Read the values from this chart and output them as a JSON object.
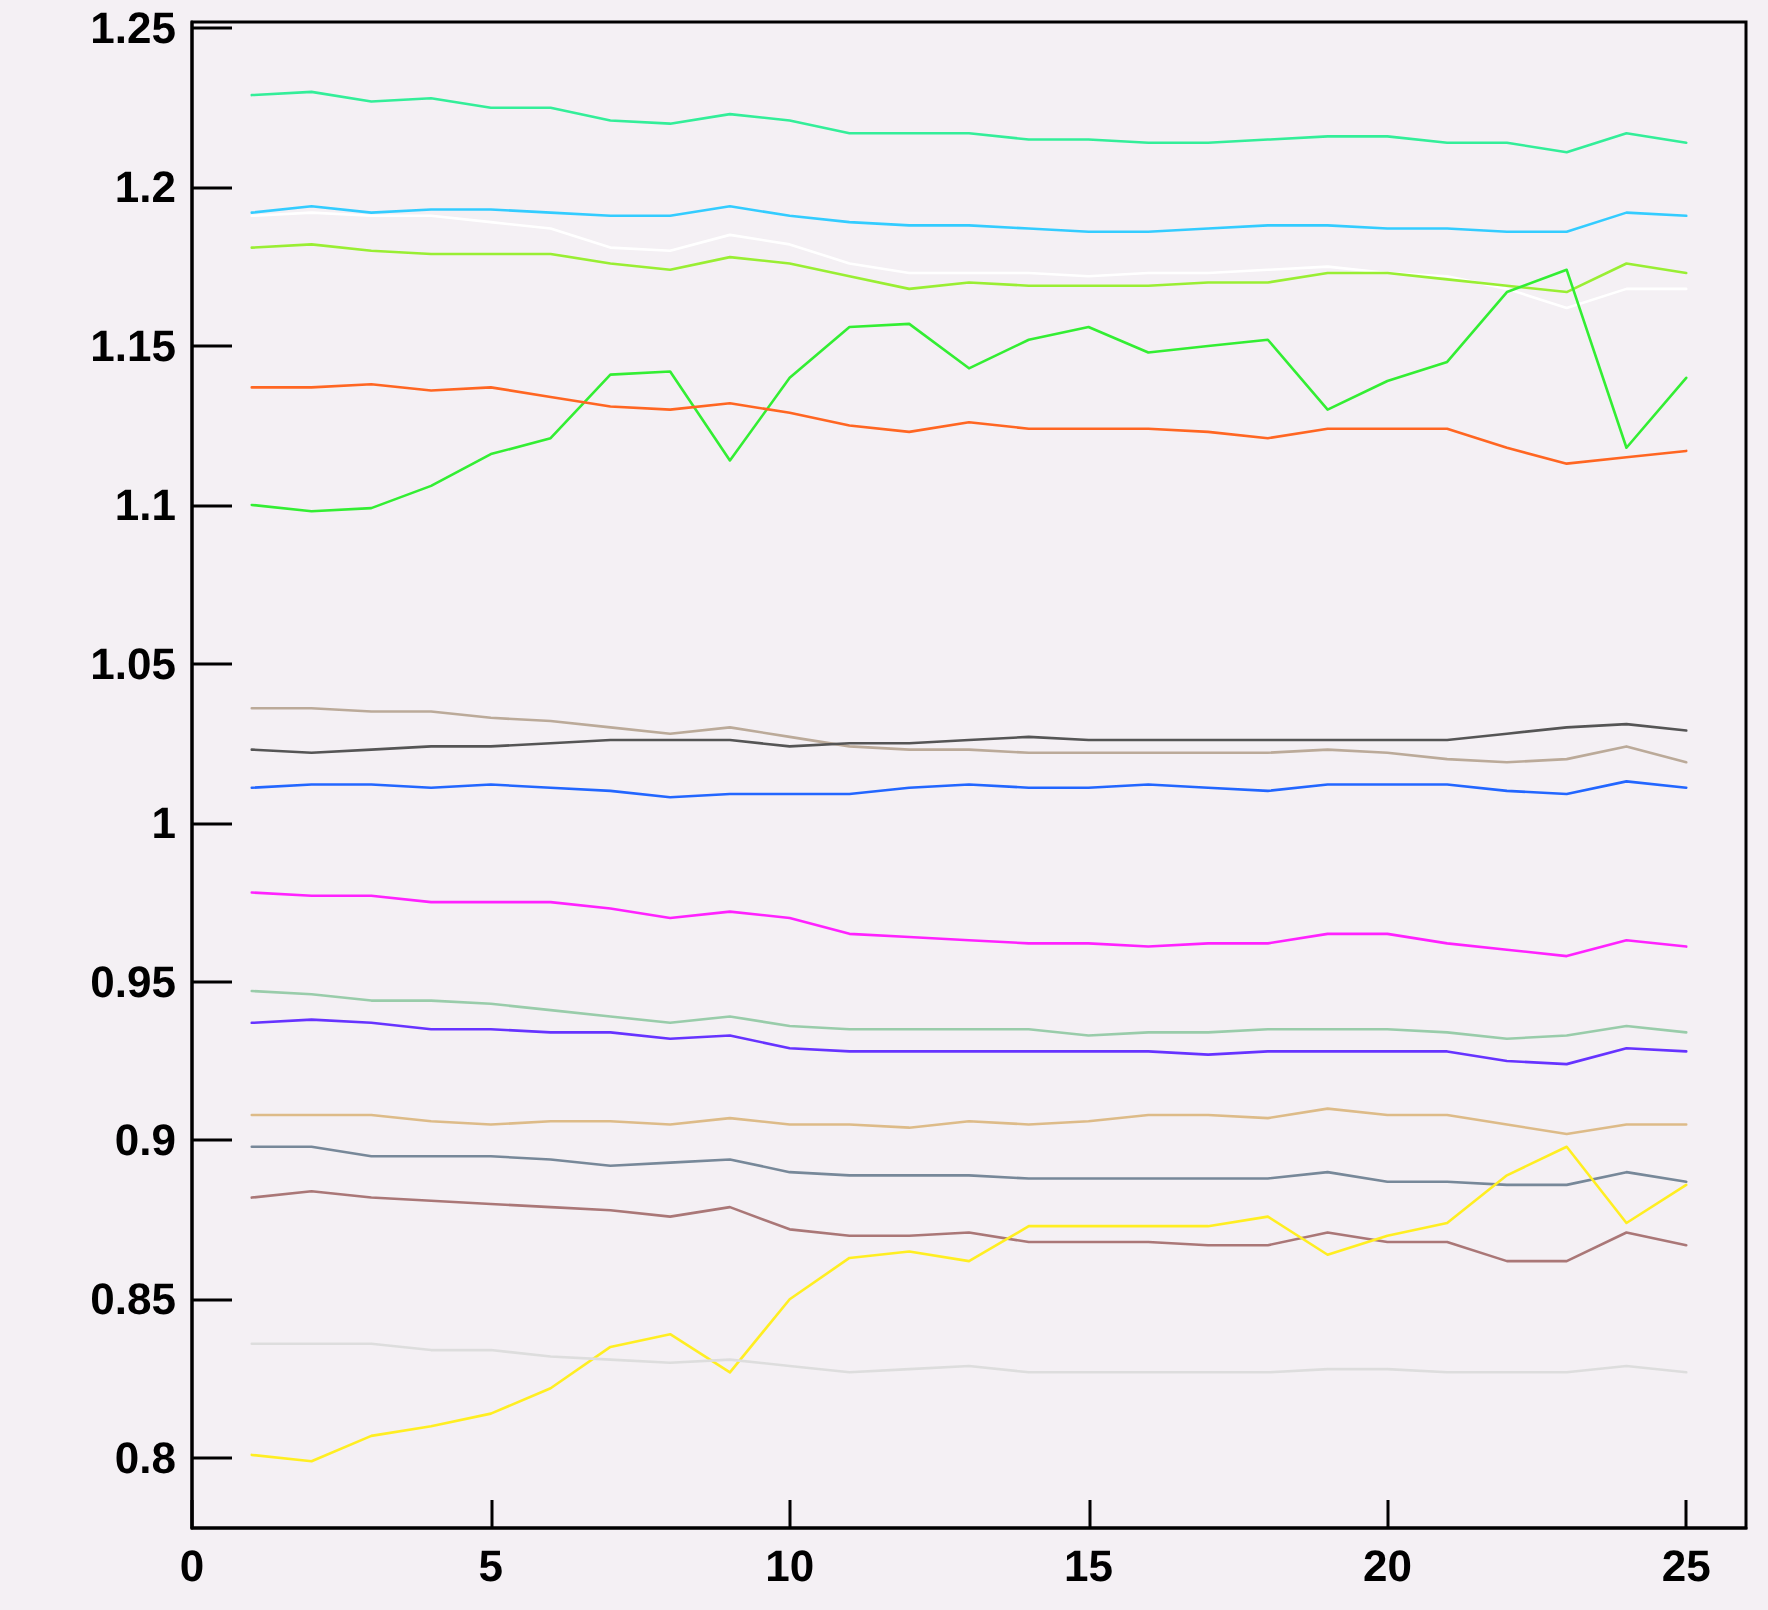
{
  "chart_data": {
    "type": "line",
    "x": [
      1,
      2,
      3,
      4,
      5,
      6,
      7,
      8,
      9,
      10,
      11,
      12,
      13,
      14,
      15,
      16,
      17,
      18,
      19,
      20,
      21,
      22,
      23,
      24,
      25
    ],
    "xlim": [
      0,
      26
    ],
    "xticks": [
      0,
      5,
      10,
      15,
      20,
      25
    ],
    "ylim": [
      0.778,
      1.252
    ],
    "yticks": [
      0.8,
      0.85,
      0.9,
      0.95,
      1,
      1.05,
      1.1,
      1.15,
      1.2,
      1.25
    ],
    "marker": "none",
    "line_style": "solid",
    "series": [
      {
        "color": "#33ee99",
        "values": [
          1.229,
          1.23,
          1.227,
          1.228,
          1.225,
          1.225,
          1.221,
          1.22,
          1.223,
          1.221,
          1.217,
          1.217,
          1.217,
          1.215,
          1.215,
          1.214,
          1.214,
          1.215,
          1.216,
          1.216,
          1.214,
          1.214,
          1.211,
          1.217,
          1.214
        ]
      },
      {
        "color": "#33ccff",
        "values": [
          1.192,
          1.194,
          1.192,
          1.193,
          1.193,
          1.192,
          1.191,
          1.191,
          1.194,
          1.191,
          1.189,
          1.188,
          1.188,
          1.187,
          1.186,
          1.186,
          1.187,
          1.188,
          1.188,
          1.187,
          1.187,
          1.186,
          1.186,
          1.192,
          1.191
        ]
      },
      {
        "color": "#ffffff",
        "values": [
          1.191,
          1.192,
          1.191,
          1.191,
          1.189,
          1.187,
          1.181,
          1.18,
          1.185,
          1.182,
          1.176,
          1.173,
          1.173,
          1.173,
          1.172,
          1.173,
          1.173,
          1.174,
          1.175,
          1.173,
          1.172,
          1.168,
          1.162,
          1.168,
          1.168
        ]
      },
      {
        "color": "#99ee33",
        "values": [
          1.181,
          1.182,
          1.18,
          1.179,
          1.179,
          1.179,
          1.176,
          1.174,
          1.178,
          1.176,
          1.172,
          1.168,
          1.17,
          1.169,
          1.169,
          1.169,
          1.17,
          1.17,
          1.173,
          1.173,
          1.171,
          1.169,
          1.167,
          1.176,
          1.173
        ]
      },
      {
        "color": "#33ee33",
        "values": [
          1.1,
          1.098,
          1.099,
          1.106,
          1.116,
          1.121,
          1.141,
          1.142,
          1.114,
          1.14,
          1.156,
          1.157,
          1.143,
          1.152,
          1.156,
          1.148,
          1.15,
          1.152,
          1.13,
          1.139,
          1.145,
          1.167,
          1.174,
          1.118,
          1.14
        ]
      },
      {
        "color": "#ff6622",
        "values": [
          1.137,
          1.137,
          1.138,
          1.136,
          1.137,
          1.134,
          1.131,
          1.13,
          1.132,
          1.129,
          1.125,
          1.123,
          1.126,
          1.124,
          1.124,
          1.124,
          1.123,
          1.121,
          1.124,
          1.124,
          1.124,
          1.118,
          1.113,
          1.115,
          1.117
        ]
      },
      {
        "color": "#bbaa99",
        "values": [
          1.036,
          1.036,
          1.035,
          1.035,
          1.033,
          1.032,
          1.03,
          1.028,
          1.03,
          1.027,
          1.024,
          1.023,
          1.023,
          1.022,
          1.022,
          1.022,
          1.022,
          1.022,
          1.023,
          1.022,
          1.02,
          1.019,
          1.02,
          1.024,
          1.019
        ]
      },
      {
        "color": "#555555",
        "values": [
          1.023,
          1.022,
          1.023,
          1.024,
          1.024,
          1.025,
          1.026,
          1.026,
          1.026,
          1.024,
          1.025,
          1.025,
          1.026,
          1.027,
          1.026,
          1.026,
          1.026,
          1.026,
          1.026,
          1.026,
          1.026,
          1.028,
          1.03,
          1.031,
          1.029
        ]
      },
      {
        "color": "#2266ff",
        "values": [
          1.011,
          1.012,
          1.012,
          1.011,
          1.012,
          1.011,
          1.01,
          1.008,
          1.009,
          1.009,
          1.009,
          1.011,
          1.012,
          1.011,
          1.011,
          1.012,
          1.011,
          1.01,
          1.012,
          1.012,
          1.012,
          1.01,
          1.009,
          1.013,
          1.011
        ]
      },
      {
        "color": "#ff22ff",
        "values": [
          0.978,
          0.977,
          0.977,
          0.975,
          0.975,
          0.975,
          0.973,
          0.97,
          0.972,
          0.97,
          0.965,
          0.964,
          0.963,
          0.962,
          0.962,
          0.961,
          0.962,
          0.962,
          0.965,
          0.965,
          0.962,
          0.96,
          0.958,
          0.963,
          0.961
        ]
      },
      {
        "color": "#99ccaa",
        "values": [
          0.947,
          0.946,
          0.944,
          0.944,
          0.943,
          0.941,
          0.939,
          0.937,
          0.939,
          0.936,
          0.935,
          0.935,
          0.935,
          0.935,
          0.933,
          0.934,
          0.934,
          0.935,
          0.935,
          0.935,
          0.934,
          0.932,
          0.933,
          0.936,
          0.934
        ]
      },
      {
        "color": "#6633ff",
        "values": [
          0.937,
          0.938,
          0.937,
          0.935,
          0.935,
          0.934,
          0.934,
          0.932,
          0.933,
          0.929,
          0.928,
          0.928,
          0.928,
          0.928,
          0.928,
          0.928,
          0.927,
          0.928,
          0.928,
          0.928,
          0.928,
          0.925,
          0.924,
          0.929,
          0.928
        ]
      },
      {
        "color": "#ddbb88",
        "values": [
          0.908,
          0.908,
          0.908,
          0.906,
          0.905,
          0.906,
          0.906,
          0.905,
          0.907,
          0.905,
          0.905,
          0.904,
          0.906,
          0.905,
          0.906,
          0.908,
          0.908,
          0.907,
          0.91,
          0.908,
          0.908,
          0.905,
          0.902,
          0.905,
          0.905
        ]
      },
      {
        "color": "#778899",
        "values": [
          0.898,
          0.898,
          0.895,
          0.895,
          0.895,
          0.894,
          0.892,
          0.893,
          0.894,
          0.89,
          0.889,
          0.889,
          0.889,
          0.888,
          0.888,
          0.888,
          0.888,
          0.888,
          0.89,
          0.887,
          0.887,
          0.886,
          0.886,
          0.89,
          0.887
        ]
      },
      {
        "color": "#aa7777",
        "values": [
          0.882,
          0.884,
          0.882,
          0.881,
          0.88,
          0.879,
          0.878,
          0.876,
          0.879,
          0.872,
          0.87,
          0.87,
          0.871,
          0.868,
          0.868,
          0.868,
          0.867,
          0.867,
          0.871,
          0.868,
          0.868,
          0.862,
          0.862,
          0.871,
          0.867
        ]
      },
      {
        "color": "#ffee22",
        "values": [
          0.801,
          0.799,
          0.807,
          0.81,
          0.814,
          0.822,
          0.835,
          0.839,
          0.827,
          0.85,
          0.863,
          0.865,
          0.862,
          0.873,
          0.873,
          0.873,
          0.873,
          0.876,
          0.864,
          0.87,
          0.874,
          0.889,
          0.898,
          0.874,
          0.886
        ]
      },
      {
        "color": "#dddddd",
        "values": [
          0.836,
          0.836,
          0.836,
          0.834,
          0.834,
          0.832,
          0.831,
          0.83,
          0.831,
          0.829,
          0.827,
          0.828,
          0.829,
          0.827,
          0.827,
          0.827,
          0.827,
          0.827,
          0.828,
          0.828,
          0.827,
          0.827,
          0.827,
          0.829,
          0.827
        ]
      }
    ]
  }
}
